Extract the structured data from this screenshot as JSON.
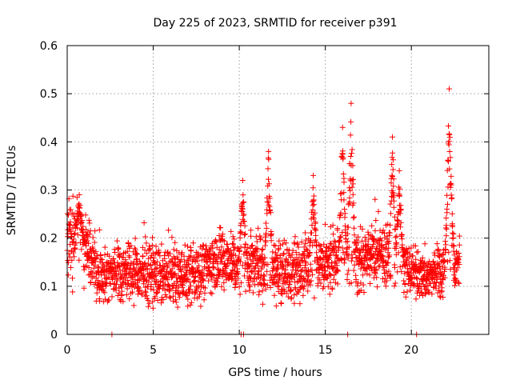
{
  "chart_data": {
    "type": "scatter",
    "title": "Day 225 of 2023, SRMTID for receiver p391",
    "xlabel": "GPS time / hours",
    "ylabel": "SRMTID / TECUs",
    "xlim": [
      0,
      24.5
    ],
    "ylim": [
      0,
      0.6
    ],
    "xticks": [
      0,
      5,
      10,
      15,
      20
    ],
    "yticks": [
      0,
      0.1,
      0.2,
      0.3,
      0.4,
      0.5,
      0.6
    ],
    "grid": true,
    "marker": "plus",
    "series": [
      {
        "name": "SRMTID",
        "color": "#ff0000",
        "approx_point_count": 2400,
        "envelope": [
          {
            "x": 0.0,
            "base": 0.2,
            "spread": 0.07
          },
          {
            "x": 0.5,
            "base": 0.21,
            "spread": 0.07
          },
          {
            "x": 1.0,
            "base": 0.18,
            "spread": 0.05
          },
          {
            "x": 2.0,
            "base": 0.12,
            "spread": 0.05
          },
          {
            "x": 3.0,
            "base": 0.13,
            "spread": 0.05
          },
          {
            "x": 4.0,
            "base": 0.13,
            "spread": 0.05
          },
          {
            "x": 5.0,
            "base": 0.12,
            "spread": 0.05
          },
          {
            "x": 6.0,
            "base": 0.12,
            "spread": 0.05
          },
          {
            "x": 7.0,
            "base": 0.12,
            "spread": 0.05
          },
          {
            "x": 8.0,
            "base": 0.14,
            "spread": 0.05
          },
          {
            "x": 9.0,
            "base": 0.16,
            "spread": 0.05
          },
          {
            "x": 10.0,
            "base": 0.14,
            "spread": 0.05
          },
          {
            "x": 11.0,
            "base": 0.15,
            "spread": 0.05
          },
          {
            "x": 12.0,
            "base": 0.13,
            "spread": 0.05
          },
          {
            "x": 13.0,
            "base": 0.13,
            "spread": 0.05
          },
          {
            "x": 14.0,
            "base": 0.15,
            "spread": 0.05
          },
          {
            "x": 15.0,
            "base": 0.14,
            "spread": 0.05
          },
          {
            "x": 16.0,
            "base": 0.16,
            "spread": 0.05
          },
          {
            "x": 17.0,
            "base": 0.15,
            "spread": 0.05
          },
          {
            "x": 18.0,
            "base": 0.17,
            "spread": 0.05
          },
          {
            "x": 19.0,
            "base": 0.15,
            "spread": 0.05
          },
          {
            "x": 20.0,
            "base": 0.13,
            "spread": 0.04
          },
          {
            "x": 21.0,
            "base": 0.12,
            "spread": 0.04
          },
          {
            "x": 22.0,
            "base": 0.14,
            "spread": 0.05
          },
          {
            "x": 22.8,
            "base": 0.15,
            "spread": 0.05
          }
        ],
        "spikes": [
          {
            "x": 0.7,
            "peak": 0.29
          },
          {
            "x": 10.2,
            "peak": 0.32
          },
          {
            "x": 11.7,
            "peak": 0.38
          },
          {
            "x": 14.3,
            "peak": 0.33
          },
          {
            "x": 16.0,
            "peak": 0.43
          },
          {
            "x": 16.5,
            "peak": 0.48
          },
          {
            "x": 18.9,
            "peak": 0.41
          },
          {
            "x": 19.3,
            "peak": 0.34
          },
          {
            "x": 22.2,
            "peak": 0.51
          }
        ],
        "zeros_x": [
          2.6,
          10.1,
          10.25,
          16.3,
          20.3
        ]
      }
    ]
  }
}
